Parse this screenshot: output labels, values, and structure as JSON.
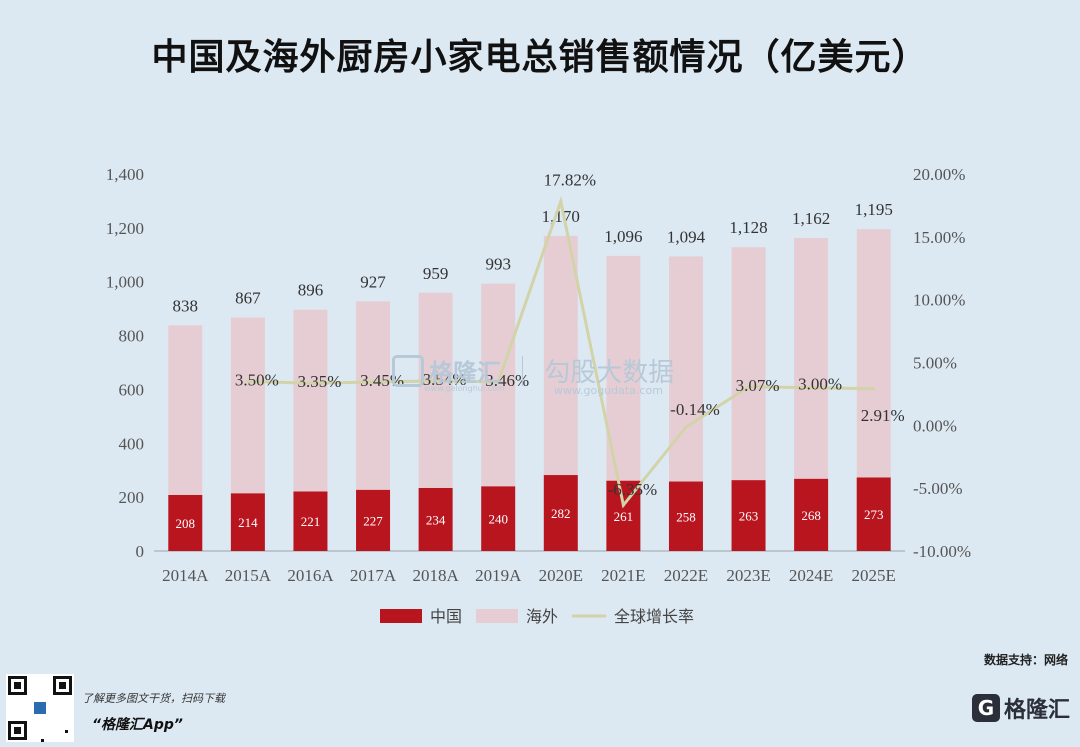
{
  "title": "中国及海外厨房小家电总销售额情况（亿美元）",
  "source": "数据支持：网络",
  "promo": {
    "line1": "了解更多图文干货，扫码下载",
    "line2": "“格隆汇App”"
  },
  "logo": {
    "mark": "G",
    "name": "格隆汇"
  },
  "watermark": {
    "brand": "格隆汇",
    "brand_url": "www.gelonghui.com",
    "product": "勾股大数据",
    "product_url": "www.gogudata.com"
  },
  "colors": {
    "china": "#b8151e",
    "overseas": "#e6cdd3",
    "growth": "#d2d3a8",
    "background": "#dde9f2"
  },
  "chart_data": {
    "type": "bar",
    "categories": [
      "2014A",
      "2015A",
      "2016A",
      "2017A",
      "2018A",
      "2019A",
      "2020E",
      "2021E",
      "2022E",
      "2023E",
      "2024E",
      "2025E"
    ],
    "series": [
      {
        "name": "中国",
        "values": [
          208,
          214,
          221,
          227,
          234,
          240,
          282,
          261,
          258,
          263,
          268,
          273
        ]
      },
      {
        "name": "海外",
        "values": [
          630,
          653,
          675,
          700,
          725,
          753,
          888,
          835,
          836,
          865,
          894,
          922
        ]
      }
    ],
    "totals": [
      838,
      867,
      896,
      927,
      959,
      993,
      1170,
      1096,
      1094,
      1128,
      1162,
      1195
    ],
    "growth": {
      "name": "全球增长率",
      "type": "line",
      "values": [
        null,
        3.5,
        3.35,
        3.45,
        3.54,
        3.46,
        17.82,
        -6.35,
        -0.14,
        3.07,
        3.0,
        2.91
      ],
      "labels": [
        "",
        "3.50%",
        "3.35%",
        "3.45%",
        "3.54%",
        "3.46%",
        "17.82%",
        "-6.35%",
        "-0.14%",
        "3.07%",
        "3.00%",
        "2.91%"
      ]
    },
    "stacked": true,
    "ylim": [
      0,
      1400
    ],
    "yticks": [
      "0",
      "200",
      "400",
      "600",
      "800",
      "1,000",
      "1,200",
      "1,400"
    ],
    "y2lim": [
      -10,
      20
    ],
    "y2ticks": [
      "-10.00%",
      "-5.00%",
      "0.00%",
      "5.00%",
      "10.00%",
      "15.00%",
      "20.00%"
    ],
    "grid": false,
    "legend_position": "bottom"
  }
}
